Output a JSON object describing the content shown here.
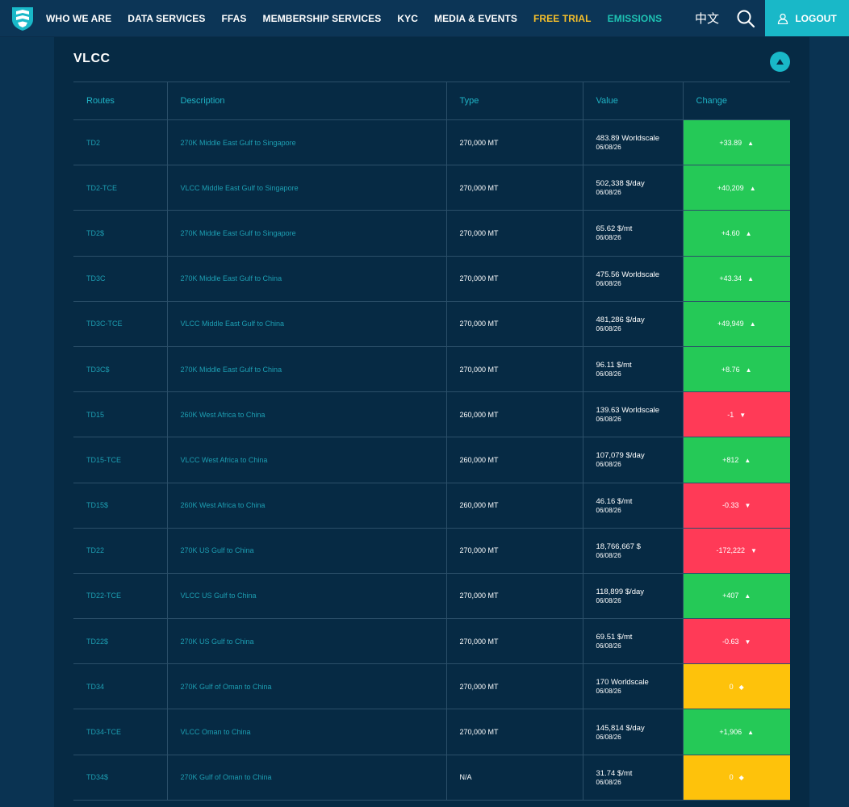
{
  "nav": {
    "items": [
      "WHO WE ARE",
      "DATA SERVICES",
      "FFAS",
      "MEMBERSHIP SERVICES",
      "KYC",
      "MEDIA & EVENTS",
      "FREE TRIAL",
      "EMISSIONS"
    ],
    "lang": "中文",
    "logout": "LOGOUT"
  },
  "colors": {
    "up": "#25c957",
    "down": "#ff3a57",
    "flat": "#fec20b",
    "accent": "#19b8c8"
  },
  "panel": {
    "title": "VLCC",
    "headers": [
      "Routes",
      "Description",
      "Type",
      "Value",
      "Change"
    ],
    "rows": [
      {
        "route": "TD2",
        "desc": "270K Middle East Gulf to Singapore",
        "type": "270,000 MT",
        "value": "483.89 Worldscale",
        "date": "06/08/26",
        "change": "+33.89",
        "dir": "up"
      },
      {
        "route": "TD2-TCE",
        "desc": "VLCC Middle East Gulf to Singapore",
        "type": "270,000 MT",
        "value": "502,338 $/day",
        "date": "06/08/26",
        "change": "+40,209",
        "dir": "up"
      },
      {
        "route": "TD2$",
        "desc": "270K Middle East Gulf to Singapore",
        "type": "270,000 MT",
        "value": "65.62 $/mt",
        "date": "06/08/26",
        "change": "+4.60",
        "dir": "up"
      },
      {
        "route": "TD3C",
        "desc": "270K Middle East Gulf to China",
        "type": "270,000 MT",
        "value": "475.56 Worldscale",
        "date": "06/08/26",
        "change": "+43.34",
        "dir": "up"
      },
      {
        "route": "TD3C-TCE",
        "desc": "VLCC Middle East Gulf to China",
        "type": "270,000 MT",
        "value": "481,286 $/day",
        "date": "06/08/26",
        "change": "+49,949",
        "dir": "up"
      },
      {
        "route": "TD3C$",
        "desc": "270K Middle East Gulf to China",
        "type": "270,000 MT",
        "value": "96.11 $/mt",
        "date": "06/08/26",
        "change": "+8.76",
        "dir": "up"
      },
      {
        "route": "TD15",
        "desc": "260K West Africa to China",
        "type": "260,000 MT",
        "value": "139.63 Worldscale",
        "date": "06/08/26",
        "change": "-1",
        "dir": "down"
      },
      {
        "route": "TD15-TCE",
        "desc": "VLCC West Africa to China",
        "type": "260,000 MT",
        "value": "107,079 $/day",
        "date": "06/08/26",
        "change": "+812",
        "dir": "up"
      },
      {
        "route": "TD15$",
        "desc": "260K West Africa to China",
        "type": "260,000 MT",
        "value": "46.16 $/mt",
        "date": "06/08/26",
        "change": "-0.33",
        "dir": "down"
      },
      {
        "route": "TD22",
        "desc": "270K US Gulf to China",
        "type": "270,000 MT",
        "value": "18,766,667 $",
        "date": "06/08/26",
        "change": "-172,222",
        "dir": "down"
      },
      {
        "route": "TD22-TCE",
        "desc": "VLCC US Gulf to China",
        "type": "270,000 MT",
        "value": "118,899 $/day",
        "date": "06/08/26",
        "change": "+407",
        "dir": "up"
      },
      {
        "route": "TD22$",
        "desc": "270K US Gulf to China",
        "type": "270,000 MT",
        "value": "69.51 $/mt",
        "date": "06/08/26",
        "change": "-0.63",
        "dir": "down"
      },
      {
        "route": "TD34",
        "desc": "270K Gulf of Oman to China",
        "type": "270,000 MT",
        "value": "170 Worldscale",
        "date": "06/08/26",
        "change": "0",
        "dir": "flat"
      },
      {
        "route": "TD34-TCE",
        "desc": "VLCC Oman to China",
        "type": "270,000 MT",
        "value": "145,814 $/day",
        "date": "06/08/26",
        "change": "+1,906",
        "dir": "up"
      },
      {
        "route": "TD34$",
        "desc": "270K Gulf of Oman to China",
        "type": "N/A",
        "value": "31.74 $/mt",
        "date": "06/08/26",
        "change": "0",
        "dir": "flat"
      }
    ]
  }
}
